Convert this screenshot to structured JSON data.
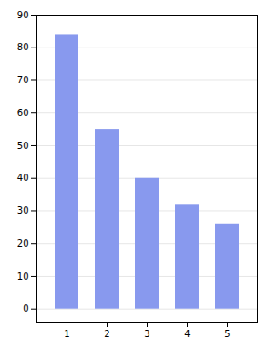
{
  "chart_data": {
    "type": "bar",
    "categories": [
      "1",
      "2",
      "3",
      "4",
      "5"
    ],
    "values": [
      84,
      55,
      40,
      32,
      26
    ],
    "color": "#8899ee",
    "ylim": [
      -4,
      90
    ],
    "yticks": [
      0,
      10,
      20,
      30,
      40,
      50,
      60,
      70,
      80,
      90
    ],
    "grid": true
  }
}
